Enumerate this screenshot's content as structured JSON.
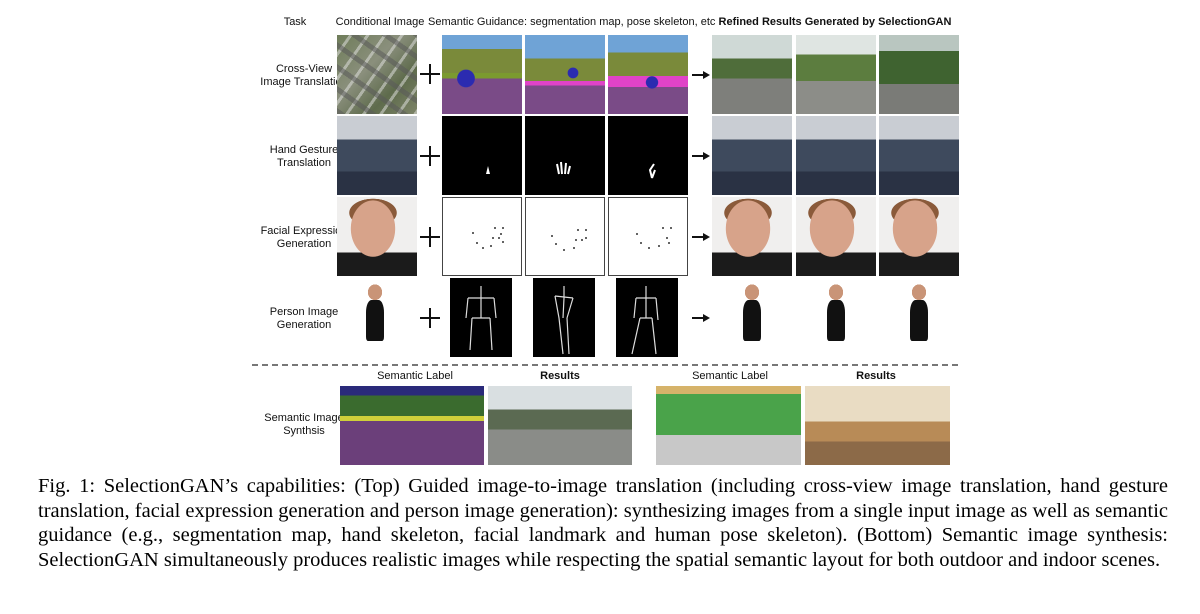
{
  "headers": {
    "task": "Task",
    "conditional_image": "Conditional Image",
    "semantic_guidance": "Semantic Guidance: segmentation map, pose skeleton, etc",
    "refined_results": "Refined Results Generated by SelectionGAN"
  },
  "rows": [
    {
      "label_line1": "Cross-View",
      "label_line2": "Image Translation"
    },
    {
      "label_line1": "Hand Gesture",
      "label_line2": "Translation"
    },
    {
      "label_line1": "Facial Expression",
      "label_line2": "Generation"
    },
    {
      "label_line1": "Person Image",
      "label_line2": "Generation"
    }
  ],
  "bottom": {
    "row_label_line1": "Semantic Image",
    "row_label_line2": "Synthsis",
    "left_semantic_label": "Semantic Label",
    "left_results": "Results",
    "right_semantic_label": "Semantic Label",
    "right_results": "Results"
  },
  "caption": "Fig. 1: SelectionGAN’s capabilities: (Top) Guided image-to-image translation (including cross-view image translation, hand gesture translation, facial expression generation and person image generation): synthesizing images from a single input image as well as semantic guidance (e.g., segmentation map, hand skeleton, facial landmark and human pose skeleton). (Bottom) Semantic image synthesis: SelectionGAN simultaneously produces realistic images while respecting the spatial semantic layout for both outdoor and indoor scenes."
}
